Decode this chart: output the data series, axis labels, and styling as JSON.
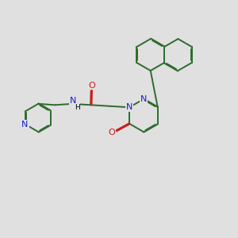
{
  "bg_color": "#e0e0e0",
  "bond_color": "#2d6b2d",
  "N_color": "#1a1acc",
  "O_color": "#cc1a1a",
  "line_width": 1.4,
  "dbo": 0.018,
  "xlim": [
    0,
    10
  ],
  "ylim": [
    0,
    10
  ]
}
